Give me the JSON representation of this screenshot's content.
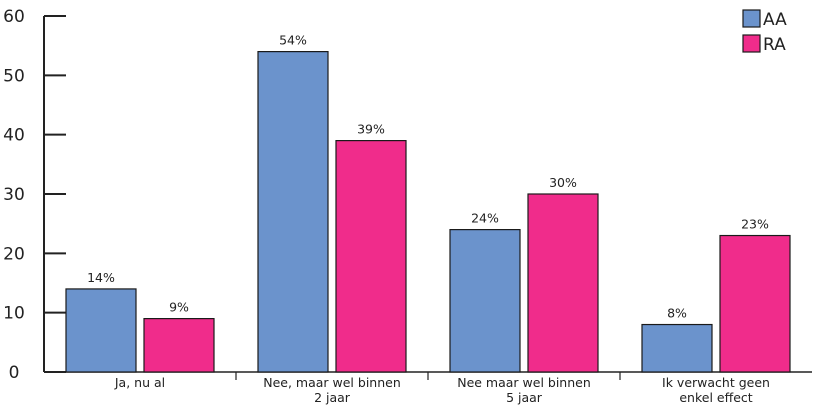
{
  "chart_data": {
    "type": "bar",
    "categories": [
      [
        "Ja, nu al"
      ],
      [
        "Nee, maar wel binnen",
        "2 jaar"
      ],
      [
        "Nee maar wel binnen",
        "5 jaar"
      ],
      [
        "Ik verwacht geen",
        "enkel effect"
      ]
    ],
    "series": [
      {
        "name": "AA",
        "values": [
          14,
          54,
          24,
          8
        ],
        "labels": [
          "14%",
          "54%",
          "24%",
          "8%"
        ],
        "color": "#6b93cc"
      },
      {
        "name": "RA",
        "values": [
          9,
          39,
          30,
          23
        ],
        "labels": [
          "9%",
          "39%",
          "30%",
          "23%"
        ],
        "color": "#f02c8b"
      }
    ],
    "ylim": [
      0,
      60
    ],
    "yticks": [
      0,
      10,
      20,
      30,
      40,
      50,
      60
    ],
    "title": "",
    "xlabel": "",
    "ylabel": "",
    "legend_position": "top-right",
    "grid": false
  }
}
